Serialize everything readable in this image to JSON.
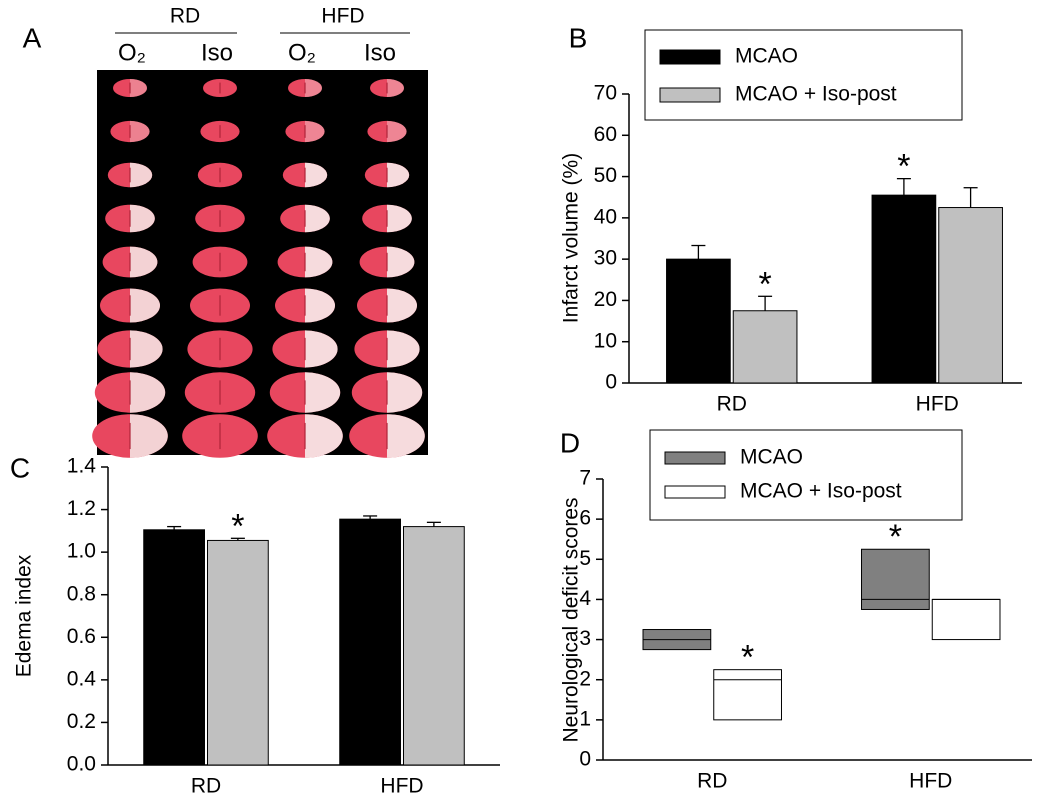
{
  "figure_a": {
    "label": "A",
    "groups": [
      "RD",
      "HFD"
    ],
    "conditions": [
      "O₂",
      "Iso",
      "O₂",
      "Iso"
    ]
  },
  "chart_data": [
    {
      "type": "bar",
      "label": "B",
      "ylabel": "Infarct volume (%)",
      "categories": [
        "RD",
        "HFD"
      ],
      "series": [
        {
          "name": "MCAO",
          "color": "#000000",
          "values": [
            30,
            45.5
          ],
          "errors": [
            3.3,
            4
          ],
          "significance": [
            null,
            "*"
          ]
        },
        {
          "name": "MCAO + Iso-post",
          "color": "#c0c0c0",
          "values": [
            17.5,
            42.5
          ],
          "errors": [
            3.5,
            4.8
          ],
          "significance": [
            "*",
            null
          ]
        }
      ],
      "ylim": [
        0,
        70
      ],
      "yticks": [
        0,
        10,
        20,
        30,
        40,
        50,
        60,
        70
      ],
      "legend": "top"
    },
    {
      "type": "bar",
      "label": "C",
      "ylabel": "Edema index",
      "categories": [
        "RD",
        "HFD"
      ],
      "series": [
        {
          "color": "#000000",
          "values": [
            1.105,
            1.155
          ],
          "errors": [
            0.015,
            0.015
          ],
          "significance": [
            null,
            null
          ]
        },
        {
          "color": "#c0c0c0",
          "values": [
            1.055,
            1.12
          ],
          "errors": [
            0.01,
            0.02
          ],
          "significance": [
            "*",
            null
          ]
        }
      ],
      "ylim": [
        0,
        1.4
      ],
      "yticks": [
        {
          "value": 0,
          "label": "0.0"
        },
        0.2,
        0.4,
        0.6,
        0.8,
        {
          "value": 1,
          "label": "1.0"
        },
        1.2,
        1.4
      ]
    },
    {
      "type": "box",
      "label": "D",
      "ylabel": "Neurological deficit scores",
      "categories": [
        "RD",
        "HFD"
      ],
      "series": [
        {
          "name": "MCAO",
          "color": "#808080",
          "q1": [
            2.75,
            3.75
          ],
          "median": [
            3,
            4
          ],
          "q3": [
            3.25,
            5.25
          ],
          "significance": [
            null,
            "*"
          ]
        },
        {
          "name": "MCAO + Iso-post",
          "color": "#ffffff",
          "q1": [
            1,
            3
          ],
          "median": [
            2,
            4
          ],
          "q3": [
            2.25,
            4
          ],
          "significance": [
            "*",
            null
          ]
        }
      ],
      "ylim": [
        0,
        7
      ],
      "yticks": [
        0,
        1,
        2,
        3,
        4,
        5,
        6,
        7
      ],
      "legend": "top"
    }
  ]
}
